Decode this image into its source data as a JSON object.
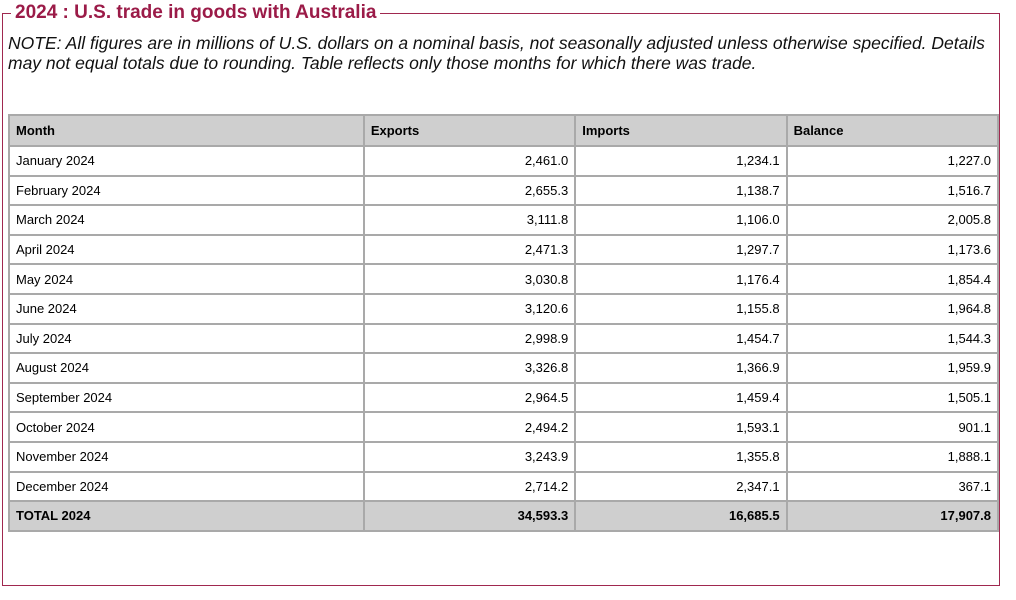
{
  "title": "2024 : U.S. trade in goods with Australia",
  "note": "NOTE: All figures are in millions of U.S. dollars on a nominal basis, not seasonally adjusted unless otherwise specified. Details may not equal totals due to rounding. Table reflects only those months for which there was trade.",
  "table": {
    "headers": {
      "month": "Month",
      "exports": "Exports",
      "imports": "Imports",
      "balance": "Balance"
    },
    "rows": [
      {
        "month": "January 2024",
        "exports": "2,461.0",
        "imports": "1,234.1",
        "balance": "1,227.0"
      },
      {
        "month": "February 2024",
        "exports": "2,655.3",
        "imports": "1,138.7",
        "balance": "1,516.7"
      },
      {
        "month": "March 2024",
        "exports": "3,111.8",
        "imports": "1,106.0",
        "balance": "2,005.8"
      },
      {
        "month": "April 2024",
        "exports": "2,471.3",
        "imports": "1,297.7",
        "balance": "1,173.6"
      },
      {
        "month": "May 2024",
        "exports": "3,030.8",
        "imports": "1,176.4",
        "balance": "1,854.4"
      },
      {
        "month": "June 2024",
        "exports": "3,120.6",
        "imports": "1,155.8",
        "balance": "1,964.8"
      },
      {
        "month": "July 2024",
        "exports": "2,998.9",
        "imports": "1,454.7",
        "balance": "1,544.3"
      },
      {
        "month": "August 2024",
        "exports": "3,326.8",
        "imports": "1,366.9",
        "balance": "1,959.9"
      },
      {
        "month": "September 2024",
        "exports": "2,964.5",
        "imports": "1,459.4",
        "balance": "1,505.1"
      },
      {
        "month": "October 2024",
        "exports": "2,494.2",
        "imports": "1,593.1",
        "balance": "901.1"
      },
      {
        "month": "November 2024",
        "exports": "3,243.9",
        "imports": "1,355.8",
        "balance": "1,888.1"
      },
      {
        "month": "December 2024",
        "exports": "2,714.2",
        "imports": "2,347.1",
        "balance": "367.1"
      }
    ],
    "total": {
      "month": "TOTAL 2024",
      "exports": "34,593.3",
      "imports": "16,685.5",
      "balance": "17,907.8"
    }
  },
  "colors": {
    "title": "#9b1b48",
    "frame_border": "#a0284f",
    "header_bg": "#cfcfcf",
    "grid": "#a9a9a9"
  }
}
